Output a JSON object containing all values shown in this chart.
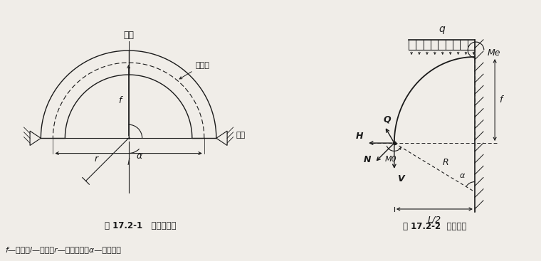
{
  "fig_width": 7.6,
  "fig_height": 3.67,
  "bg_color": "#f0ede8",
  "line_color": "#1a1a1a",
  "title1": "图 17.2-1   圆弧无铰拱",
  "title2": "图 17.2-2  拱身内力",
  "caption": "f—矢高；l—跨度；r—圆弧半径；α—半弧心角",
  "label_gongding": "拱顶",
  "label_gongzhou": "拱轴线",
  "label_gongjiao": "拱脚",
  "label_f": "f",
  "label_l": "l",
  "label_r": "r",
  "label_alpha": "α",
  "label_Q": "Q",
  "label_q": "q",
  "label_H": "H",
  "label_V": "V",
  "label_N": "N",
  "label_M0": "M0",
  "label_Me": "Me",
  "label_R": "R",
  "label_f2": "f",
  "label_L2": "L/2",
  "label_alpha2": "α"
}
